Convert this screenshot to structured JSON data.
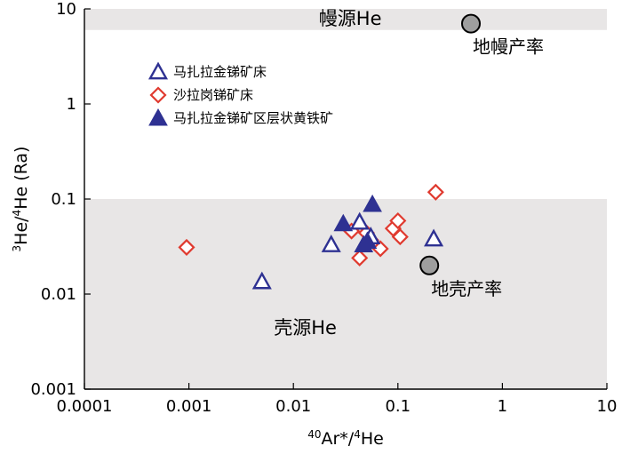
{
  "chart_data": {
    "type": "scatter",
    "xscale": "log",
    "yscale": "log",
    "xlim": [
      0.0001,
      10
    ],
    "ylim": [
      0.001,
      10
    ],
    "xticks": [
      "0.0001",
      "0.001",
      "0.01",
      "0.1",
      "1",
      "10"
    ],
    "yticks": [
      "0.001",
      "0.01",
      "0.1",
      "1",
      "10"
    ],
    "xlabel": {
      "sup": "40",
      "text": "Ar*/",
      "sup2": "4",
      "text2": "He"
    },
    "ylabel": {
      "sup": "3",
      "text": "He/",
      "sup2": "4",
      "text2": "He (Ra)"
    },
    "grid": false,
    "legend_position": "top-left",
    "regions": [
      {
        "name": "mantle-band",
        "y_range": [
          6,
          10
        ],
        "color": "#e8e6e6"
      },
      {
        "name": "crust-band",
        "y_range": [
          0.001,
          0.1
        ],
        "color": "#e8e6e6"
      }
    ],
    "series": [
      {
        "name": "马扎拉金锑矿床",
        "marker": "triangle-open",
        "color": "#2e3192",
        "points": [
          [
            0.005,
            0.0135
          ],
          [
            0.023,
            0.033
          ],
          [
            0.043,
            0.057
          ],
          [
            0.055,
            0.04
          ],
          [
            0.22,
            0.038
          ]
        ]
      },
      {
        "name": "沙拉岗锑矿床",
        "marker": "diamond-open",
        "color": "#e03a2f",
        "points": [
          [
            0.00095,
            0.031
          ],
          [
            0.036,
            0.046
          ],
          [
            0.043,
            0.024
          ],
          [
            0.05,
            0.044
          ],
          [
            0.055,
            0.037
          ],
          [
            0.068,
            0.03
          ],
          [
            0.09,
            0.049
          ],
          [
            0.1,
            0.059
          ],
          [
            0.105,
            0.04
          ],
          [
            0.23,
            0.118
          ]
        ]
      },
      {
        "name": "马扎拉金锑矿区层状黄铁矿",
        "marker": "triangle-filled",
        "color": "#2e3192",
        "points": [
          [
            0.03,
            0.055
          ],
          [
            0.047,
            0.033
          ],
          [
            0.051,
            0.036
          ],
          [
            0.057,
            0.088
          ]
        ]
      }
    ],
    "reference_points": [
      {
        "label": "地幔产率",
        "x": 0.5,
        "y": 7.0,
        "color": "#9e9e9e"
      },
      {
        "label": "地壳产率",
        "x": 0.2,
        "y": 0.02,
        "color": "#9e9e9e"
      }
    ],
    "annotations": [
      {
        "text": "幔源He",
        "x": 0.035,
        "y": 6.8
      },
      {
        "text": "壳源He",
        "x": 0.013,
        "y": 0.0038
      }
    ]
  }
}
